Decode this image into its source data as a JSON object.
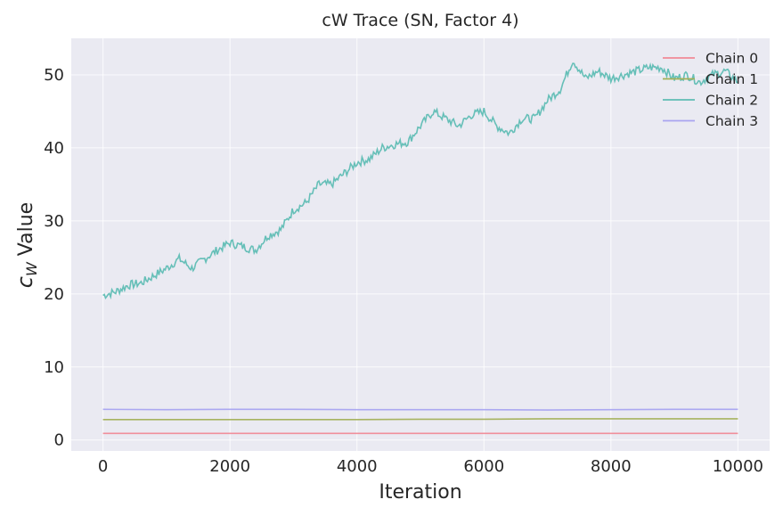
{
  "chart_data": {
    "type": "line",
    "title": "cW Trace (SN, Factor 4)",
    "xlabel": "Iteration",
    "ylabel_main": "c",
    "ylabel_sub": "W",
    "ylabel_rest": " Value",
    "xlim": [
      -500,
      10500
    ],
    "ylim": [
      -1.5,
      55
    ],
    "xticks": [
      0,
      2000,
      4000,
      6000,
      8000,
      10000
    ],
    "yticks": [
      0,
      10,
      20,
      30,
      40,
      50
    ],
    "grid": true,
    "legend_position": "top-right",
    "series": [
      {
        "name": "Chain 0",
        "color": "#f08a96",
        "x": [
          0,
          1000,
          2000,
          3000,
          4000,
          5000,
          6000,
          7000,
          8000,
          9000,
          10000
        ],
        "y": [
          0.9,
          0.9,
          0.9,
          0.9,
          0.9,
          0.9,
          0.9,
          0.9,
          0.9,
          0.9,
          0.9
        ]
      },
      {
        "name": "Chain 1",
        "color": "#a3b057",
        "x": [
          0,
          1000,
          2000,
          3000,
          4000,
          5000,
          6000,
          7000,
          8000,
          9000,
          10000
        ],
        "y": [
          2.8,
          2.8,
          2.8,
          2.8,
          2.8,
          2.85,
          2.85,
          2.9,
          2.9,
          2.9,
          2.9
        ]
      },
      {
        "name": "Chain 2",
        "color": "#5fbdb4",
        "x": [
          0,
          200,
          400,
          600,
          800,
          1000,
          1200,
          1400,
          1600,
          1800,
          2000,
          2200,
          2400,
          2600,
          2800,
          3000,
          3200,
          3400,
          3600,
          3800,
          4000,
          4200,
          4400,
          4600,
          4800,
          5000,
          5200,
          5400,
          5600,
          5800,
          6000,
          6200,
          6400,
          6600,
          6800,
          7000,
          7200,
          7400,
          7600,
          7800,
          8000,
          8200,
          8400,
          8600,
          8800,
          9000,
          9200,
          9400,
          9600,
          9800,
          10000
        ],
        "y": [
          19.8,
          20.3,
          21.2,
          21.5,
          22.5,
          23.5,
          24.8,
          23.5,
          24.8,
          26.0,
          27.0,
          26.5,
          26.0,
          28.0,
          28.8,
          31.5,
          32.5,
          35.0,
          35.0,
          36.5,
          38.0,
          38.5,
          40.0,
          40.5,
          40.8,
          43.0,
          45.0,
          44.0,
          43.0,
          44.5,
          45.0,
          43.0,
          42.0,
          44.0,
          44.0,
          46.5,
          48.0,
          52.0,
          49.5,
          50.5,
          49.5,
          50.0,
          50.5,
          51.0,
          51.0,
          49.5,
          50.0,
          49.0,
          50.0,
          50.5,
          49.0
        ]
      },
      {
        "name": "Chain 3",
        "color": "#a8a4f0",
        "x": [
          0,
          1000,
          2000,
          3000,
          4000,
          5000,
          6000,
          7000,
          8000,
          9000,
          10000
        ],
        "y": [
          4.2,
          4.15,
          4.2,
          4.2,
          4.15,
          4.15,
          4.15,
          4.1,
          4.15,
          4.2,
          4.2
        ]
      }
    ]
  }
}
